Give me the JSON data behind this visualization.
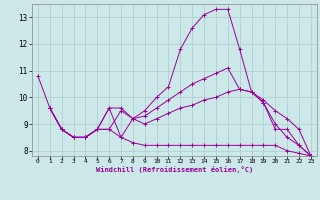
{
  "xlabel": "Windchill (Refroidissement éolien,°C)",
  "ylabel": "",
  "bg_color": "#cce8e8",
  "grid_color": "#aacccc",
  "line_color": "#990099",
  "xlim": [
    -0.5,
    23.5
  ],
  "ylim": [
    7.8,
    13.5
  ],
  "xticks": [
    0,
    1,
    2,
    3,
    4,
    5,
    6,
    7,
    8,
    9,
    10,
    11,
    12,
    13,
    14,
    15,
    16,
    17,
    18,
    19,
    20,
    21,
    22,
    23
  ],
  "yticks": [
    8,
    9,
    10,
    11,
    12,
    13
  ],
  "series": [
    {
      "x": [
        0,
        1,
        2,
        3,
        4,
        5,
        6,
        7,
        8,
        9,
        10,
        11,
        12,
        13,
        14,
        15,
        16,
        17,
        18,
        19,
        20,
        21,
        22,
        23
      ],
      "y": [
        10.8,
        9.6,
        8.8,
        8.5,
        8.5,
        8.8,
        9.6,
        9.6,
        9.2,
        9.5,
        10.0,
        10.4,
        11.8,
        12.6,
        13.1,
        13.3,
        13.3,
        11.8,
        10.2,
        9.8,
        8.8,
        8.8,
        8.2,
        7.8
      ]
    },
    {
      "x": [
        1,
        2,
        3,
        4,
        5,
        6,
        7,
        8,
        9,
        10,
        11,
        12,
        13,
        14,
        15,
        16,
        17,
        18,
        19,
        20,
        21,
        22,
        23
      ],
      "y": [
        9.6,
        8.8,
        8.5,
        8.5,
        8.8,
        9.6,
        8.5,
        9.2,
        9.3,
        9.6,
        9.9,
        10.2,
        10.5,
        10.7,
        10.9,
        11.1,
        10.3,
        10.2,
        9.9,
        9.5,
        9.2,
        8.8,
        7.8
      ]
    },
    {
      "x": [
        1,
        2,
        3,
        4,
        5,
        6,
        7,
        8,
        9,
        10,
        11,
        12,
        13,
        14,
        15,
        16,
        17,
        18,
        19,
        20,
        21,
        22,
        23
      ],
      "y": [
        9.6,
        8.8,
        8.5,
        8.5,
        8.8,
        8.8,
        9.5,
        9.2,
        9.0,
        9.2,
        9.4,
        9.6,
        9.7,
        9.9,
        10.0,
        10.2,
        10.3,
        10.2,
        9.8,
        9.0,
        8.5,
        8.2,
        7.8
      ]
    },
    {
      "x": [
        1,
        2,
        3,
        4,
        5,
        6,
        7,
        8,
        9,
        10,
        11,
        12,
        13,
        14,
        15,
        16,
        17,
        18,
        19,
        20,
        21,
        22,
        23
      ],
      "y": [
        9.6,
        8.8,
        8.5,
        8.5,
        8.8,
        8.8,
        8.5,
        8.3,
        8.2,
        8.2,
        8.2,
        8.2,
        8.2,
        8.2,
        8.2,
        8.2,
        8.2,
        8.2,
        8.2,
        8.2,
        8.0,
        7.9,
        7.8
      ]
    }
  ]
}
